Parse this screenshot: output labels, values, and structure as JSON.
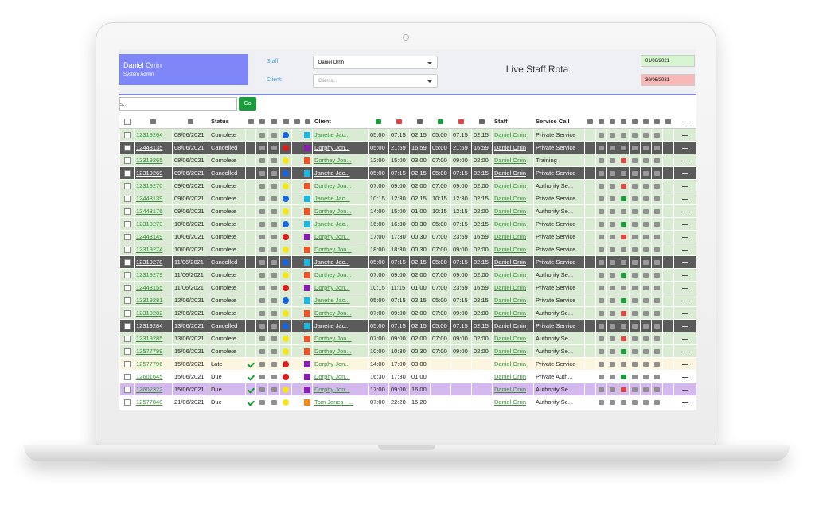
{
  "user": {
    "name": "Daniel Orrin",
    "role": "System Admin"
  },
  "filters": {
    "staff_label": "Staff:",
    "staff_value": "Daniel Orrin",
    "client_label": "Client:",
    "client_placeholder": "Clients...",
    "date_from": "01/06/2021",
    "date_to": "30/06/2021",
    "search_placeholder": "s...",
    "go": "Go"
  },
  "title": "Live Staff Rota",
  "table": {
    "headers": {
      "status": "Status",
      "client": "Client",
      "staff": "Staff",
      "service": "Service Call"
    },
    "rows": [
      {
        "id": "12319264",
        "date": "08/06/2021",
        "status": "Complete",
        "client": "Janette Jac...",
        "start": "05:00",
        "end": "07:15",
        "duration": "02:15",
        "actual_start": "05:00",
        "actual_end": "07:15",
        "actual_duration": "02:15",
        "staff": "Daniel Orrin",
        "service": "Private Service",
        "bg": "#d9ecd3",
        "dot": "#1565e0",
        "square": "#1fb5e0"
      },
      {
        "id": "12443135",
        "date": "08/06/2021",
        "status": "Cancelled",
        "client": "Dorphy Jon...",
        "start": "05:00",
        "end": "21:59",
        "duration": "16:59",
        "actual_start": "05:00",
        "actual_end": "21:59",
        "actual_duration": "16:59",
        "staff": "Daniel Orrin",
        "service": "Private Service",
        "bg": "#5b5b5b",
        "dot": "#d81e1e",
        "square": "#8a1cb0"
      },
      {
        "id": "12319265",
        "date": "08/06/2021",
        "status": "Complete",
        "client": "Dorthey Jon...",
        "start": "12:00",
        "end": "15:00",
        "duration": "03:00",
        "actual_start": "07:00",
        "actual_end": "09:00",
        "actual_duration": "02:00",
        "staff": "Daniel Orrin",
        "service": "Training",
        "bg": "#d9ecd3",
        "dot": "#f5e61c",
        "square": "#e8542a"
      },
      {
        "id": "12319269",
        "date": "09/06/2021",
        "status": "Cancelled",
        "client": "Janette Jac...",
        "start": "05:00",
        "end": "07:15",
        "duration": "02:15",
        "actual_start": "05:00",
        "actual_end": "07:15",
        "actual_duration": "02:15",
        "staff": "Daniel Orrin",
        "service": "Private Service",
        "bg": "#5b5b5b",
        "dot": "#1565e0",
        "square": "#1fb5e0"
      },
      {
        "id": "12319270",
        "date": "09/06/2021",
        "status": "Complete",
        "client": "Dorthey Jon...",
        "start": "07:00",
        "end": "09:00",
        "duration": "02:00",
        "actual_start": "07:00",
        "actual_end": "09:00",
        "actual_duration": "02:00",
        "staff": "Daniel Orrin",
        "service": "Authority Se...",
        "bg": "#d9ecd3",
        "dot": "#f5e61c",
        "square": "#e8542a"
      },
      {
        "id": "12443139",
        "date": "09/06/2021",
        "status": "Complete",
        "client": "Janette Jac...",
        "start": "10:15",
        "end": "12:30",
        "duration": "02:15",
        "actual_start": "10:15",
        "actual_end": "12:30",
        "actual_duration": "02:15",
        "staff": "Daniel Orrin",
        "service": "Private Service",
        "bg": "#d9ecd3",
        "dot": "#1565e0",
        "square": "#1fb5e0"
      },
      {
        "id": "12443176",
        "date": "09/06/2021",
        "status": "Complete",
        "client": "Dorthey Jon...",
        "start": "14:00",
        "end": "15:00",
        "duration": "01:00",
        "actual_start": "10:15",
        "actual_end": "12:15",
        "actual_duration": "02:00",
        "staff": "Daniel Orrin",
        "service": "Authority Se...",
        "bg": "#d9ecd3",
        "dot": "#f5e61c",
        "square": "#e8542a"
      },
      {
        "id": "12319273",
        "date": "10/06/2021",
        "status": "Complete",
        "client": "Janette Jac...",
        "start": "16:00",
        "end": "16:30",
        "duration": "00:30",
        "actual_start": "05:00",
        "actual_end": "07:15",
        "actual_duration": "02:15",
        "staff": "Daniel Orrin",
        "service": "Private Service",
        "bg": "#d9ecd3",
        "dot": "#1565e0",
        "square": "#1fb5e0"
      },
      {
        "id": "12443149",
        "date": "10/06/2021",
        "status": "Complete",
        "client": "Dorphy Jon...",
        "start": "17:00",
        "end": "17:30",
        "duration": "00:30",
        "actual_start": "07:00",
        "actual_end": "23:59",
        "actual_duration": "16:59",
        "staff": "Daniel Orrin",
        "service": "Private Service",
        "bg": "#d9ecd3",
        "dot": "#d81e1e",
        "square": "#8a1cb0"
      },
      {
        "id": "12319274",
        "date": "10/06/2021",
        "status": "Complete",
        "client": "Dorthey Jon...",
        "start": "18:00",
        "end": "18:30",
        "duration": "00:30",
        "actual_start": "07:00",
        "actual_end": "09:00",
        "actual_duration": "02:00",
        "staff": "Daniel Orrin",
        "service": "Private Service",
        "bg": "#d9ecd3",
        "dot": "#f5e61c",
        "square": "#e8542a"
      },
      {
        "id": "12319278",
        "date": "11/06/2021",
        "status": "Cancelled",
        "client": "Janette Jac...",
        "start": "05:00",
        "end": "07:15",
        "duration": "02:15",
        "actual_start": "05:00",
        "actual_end": "07:15",
        "actual_duration": "02:15",
        "staff": "Daniel Orrin",
        "service": "Private Service",
        "bg": "#5b5b5b",
        "dot": "#1565e0",
        "square": "#1fb5e0"
      },
      {
        "id": "12319279",
        "date": "11/06/2021",
        "status": "Complete",
        "client": "Dorthey Jon...",
        "start": "07:00",
        "end": "09:00",
        "duration": "02:00",
        "actual_start": "07:00",
        "actual_end": "09:00",
        "actual_duration": "02:00",
        "staff": "Daniel Orrin",
        "service": "Authority Se...",
        "bg": "#d9ecd3",
        "dot": "#f5e61c",
        "square": "#e8542a"
      },
      {
        "id": "12443155",
        "date": "11/06/2021",
        "status": "Complete",
        "client": "Dorphy Jon...",
        "start": "10:15",
        "end": "11:15",
        "duration": "01:00",
        "actual_start": "07:00",
        "actual_end": "23:59",
        "actual_duration": "16:59",
        "staff": "Daniel Orrin",
        "service": "Private Service",
        "bg": "#d9ecd3",
        "dot": "#d81e1e",
        "square": "#8a1cb0"
      },
      {
        "id": "12319281",
        "date": "12/06/2021",
        "status": "Complete",
        "client": "Janette Jac...",
        "start": "05:00",
        "end": "07:15",
        "duration": "02:15",
        "actual_start": "05:00",
        "actual_end": "07:15",
        "actual_duration": "02:15",
        "staff": "Daniel Orrin",
        "service": "Private Service",
        "bg": "#d9ecd3",
        "dot": "#1565e0",
        "square": "#1fb5e0"
      },
      {
        "id": "12319282",
        "date": "12/06/2021",
        "status": "Complete",
        "client": "Dorthey Jon...",
        "start": "07:00",
        "end": "09:00",
        "duration": "02:00",
        "actual_start": "07:00",
        "actual_end": "09:00",
        "actual_duration": "02:00",
        "staff": "Daniel Orrin",
        "service": "Authority Se...",
        "bg": "#d9ecd3",
        "dot": "#f5e61c",
        "square": "#e8542a"
      },
      {
        "id": "12319284",
        "date": "13/06/2021",
        "status": "Cancelled",
        "client": "Janette Jac...",
        "start": "05:00",
        "end": "07:15",
        "duration": "02:15",
        "actual_start": "05:00",
        "actual_end": "07:15",
        "actual_duration": "02:15",
        "staff": "Daniel Orrin",
        "service": "Private Service",
        "bg": "#5b5b5b",
        "dot": "#1565e0",
        "square": "#1fb5e0"
      },
      {
        "id": "12319285",
        "date": "13/06/2021",
        "status": "Complete",
        "client": "Dorthey Jon...",
        "start": "07:00",
        "end": "09:00",
        "duration": "02:00",
        "actual_start": "07:00",
        "actual_end": "09:00",
        "actual_duration": "02:00",
        "staff": "Daniel Orrin",
        "service": "Authority Se...",
        "bg": "#d9ecd3",
        "dot": "#f5e61c",
        "square": "#e8542a"
      },
      {
        "id": "12577799",
        "date": "15/06/2021",
        "status": "Complete",
        "client": "Dorthey Jon...",
        "start": "10:00",
        "end": "10:30",
        "duration": "00:30",
        "actual_start": "07:00",
        "actual_end": "09:00",
        "actual_duration": "02:00",
        "staff": "Daniel Orrin",
        "service": "Authority Se...",
        "bg": "#d9ecd3",
        "dot": "#f5e61c",
        "square": "#e8542a"
      },
      {
        "id": "12577796",
        "date": "15/06/2021",
        "status": "Late",
        "client": "Dorphy Jon...",
        "start": "14:00",
        "end": "17:00",
        "duration": "03:00",
        "actual_start": null,
        "actual_end": null,
        "actual_duration": null,
        "staff": "Daniel Orrin",
        "service": "Private Service",
        "bg": "#fcf5df",
        "dot": "#d81e1e",
        "square": "#8a1cb0"
      },
      {
        "id": "12601645",
        "date": "15/06/2021",
        "status": "Due",
        "client": "Dorphy Jon...",
        "start": "16:30",
        "end": "17:30",
        "duration": "01:00",
        "actual_start": null,
        "actual_end": null,
        "actual_duration": null,
        "staff": "Daniel Orrin",
        "service": "Private Auth...",
        "bg": "#ffffff",
        "dot": "#d81e1e",
        "square": "#8a1cb0"
      },
      {
        "id": "12602322",
        "date": "15/06/2021",
        "status": "Due",
        "client": "Dorphy Jon...",
        "start": "17:00",
        "end": "09:00",
        "duration": "16:00",
        "actual_start": null,
        "actual_end": null,
        "actual_duration": null,
        "staff": "Daniel Orrin",
        "service": "Authority Se...",
        "bg": "#d4b9ee",
        "dot": "#f5e61c",
        "square": "#8a1cb0"
      },
      {
        "id": "12577840",
        "date": "21/06/2021",
        "status": "Due",
        "client": "Tom Jones - ...",
        "start": "07:00",
        "end": "22:20",
        "duration": "15:20",
        "actual_start": null,
        "actual_end": null,
        "actual_duration": null,
        "staff": "Daniel Orrin",
        "service": "Authority Se...",
        "bg": "#ffffff",
        "dot": "#f5e61c",
        "square": "#f08a1c"
      }
    ]
  }
}
